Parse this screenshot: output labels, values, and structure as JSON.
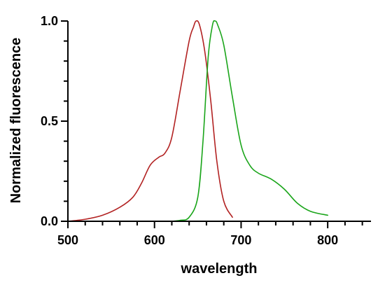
{
  "chart_data": {
    "type": "line",
    "title": "",
    "xlabel": "wavelength",
    "ylabel": "Normalized fluorescence",
    "xlim": [
      500,
      850
    ],
    "ylim": [
      0,
      1.0
    ],
    "x_ticks": [
      "500",
      "600",
      "700",
      "800"
    ],
    "y_ticks": [
      "0.0",
      "0.5",
      "1.0"
    ],
    "x_tick_values": [
      500,
      600,
      700,
      800
    ],
    "y_tick_values": [
      0,
      0.5,
      1.0
    ],
    "x_minor_step": 20,
    "y_minor_step": 0.1,
    "grid": false,
    "legend": "none",
    "series": [
      {
        "color": "#b22222",
        "x": [
          500,
          520,
          540,
          560,
          575,
          585,
          595,
          605,
          612,
          620,
          630,
          640,
          645,
          648,
          652,
          658,
          665,
          672,
          680,
          690
        ],
        "y": [
          0.0,
          0.01,
          0.03,
          0.07,
          0.12,
          0.19,
          0.28,
          0.32,
          0.34,
          0.42,
          0.66,
          0.9,
          0.97,
          1.0,
          0.98,
          0.85,
          0.6,
          0.3,
          0.1,
          0.02
        ]
      },
      {
        "color": "#1aa51a",
        "x": [
          620,
          630,
          640,
          650,
          656,
          662,
          667,
          670,
          673,
          680,
          690,
          700,
          710,
          720,
          735,
          750,
          765,
          780,
          800
        ],
        "y": [
          0.0,
          0.005,
          0.02,
          0.12,
          0.4,
          0.82,
          0.98,
          1.0,
          0.98,
          0.88,
          0.62,
          0.38,
          0.28,
          0.24,
          0.21,
          0.16,
          0.09,
          0.05,
          0.03
        ]
      }
    ]
  }
}
